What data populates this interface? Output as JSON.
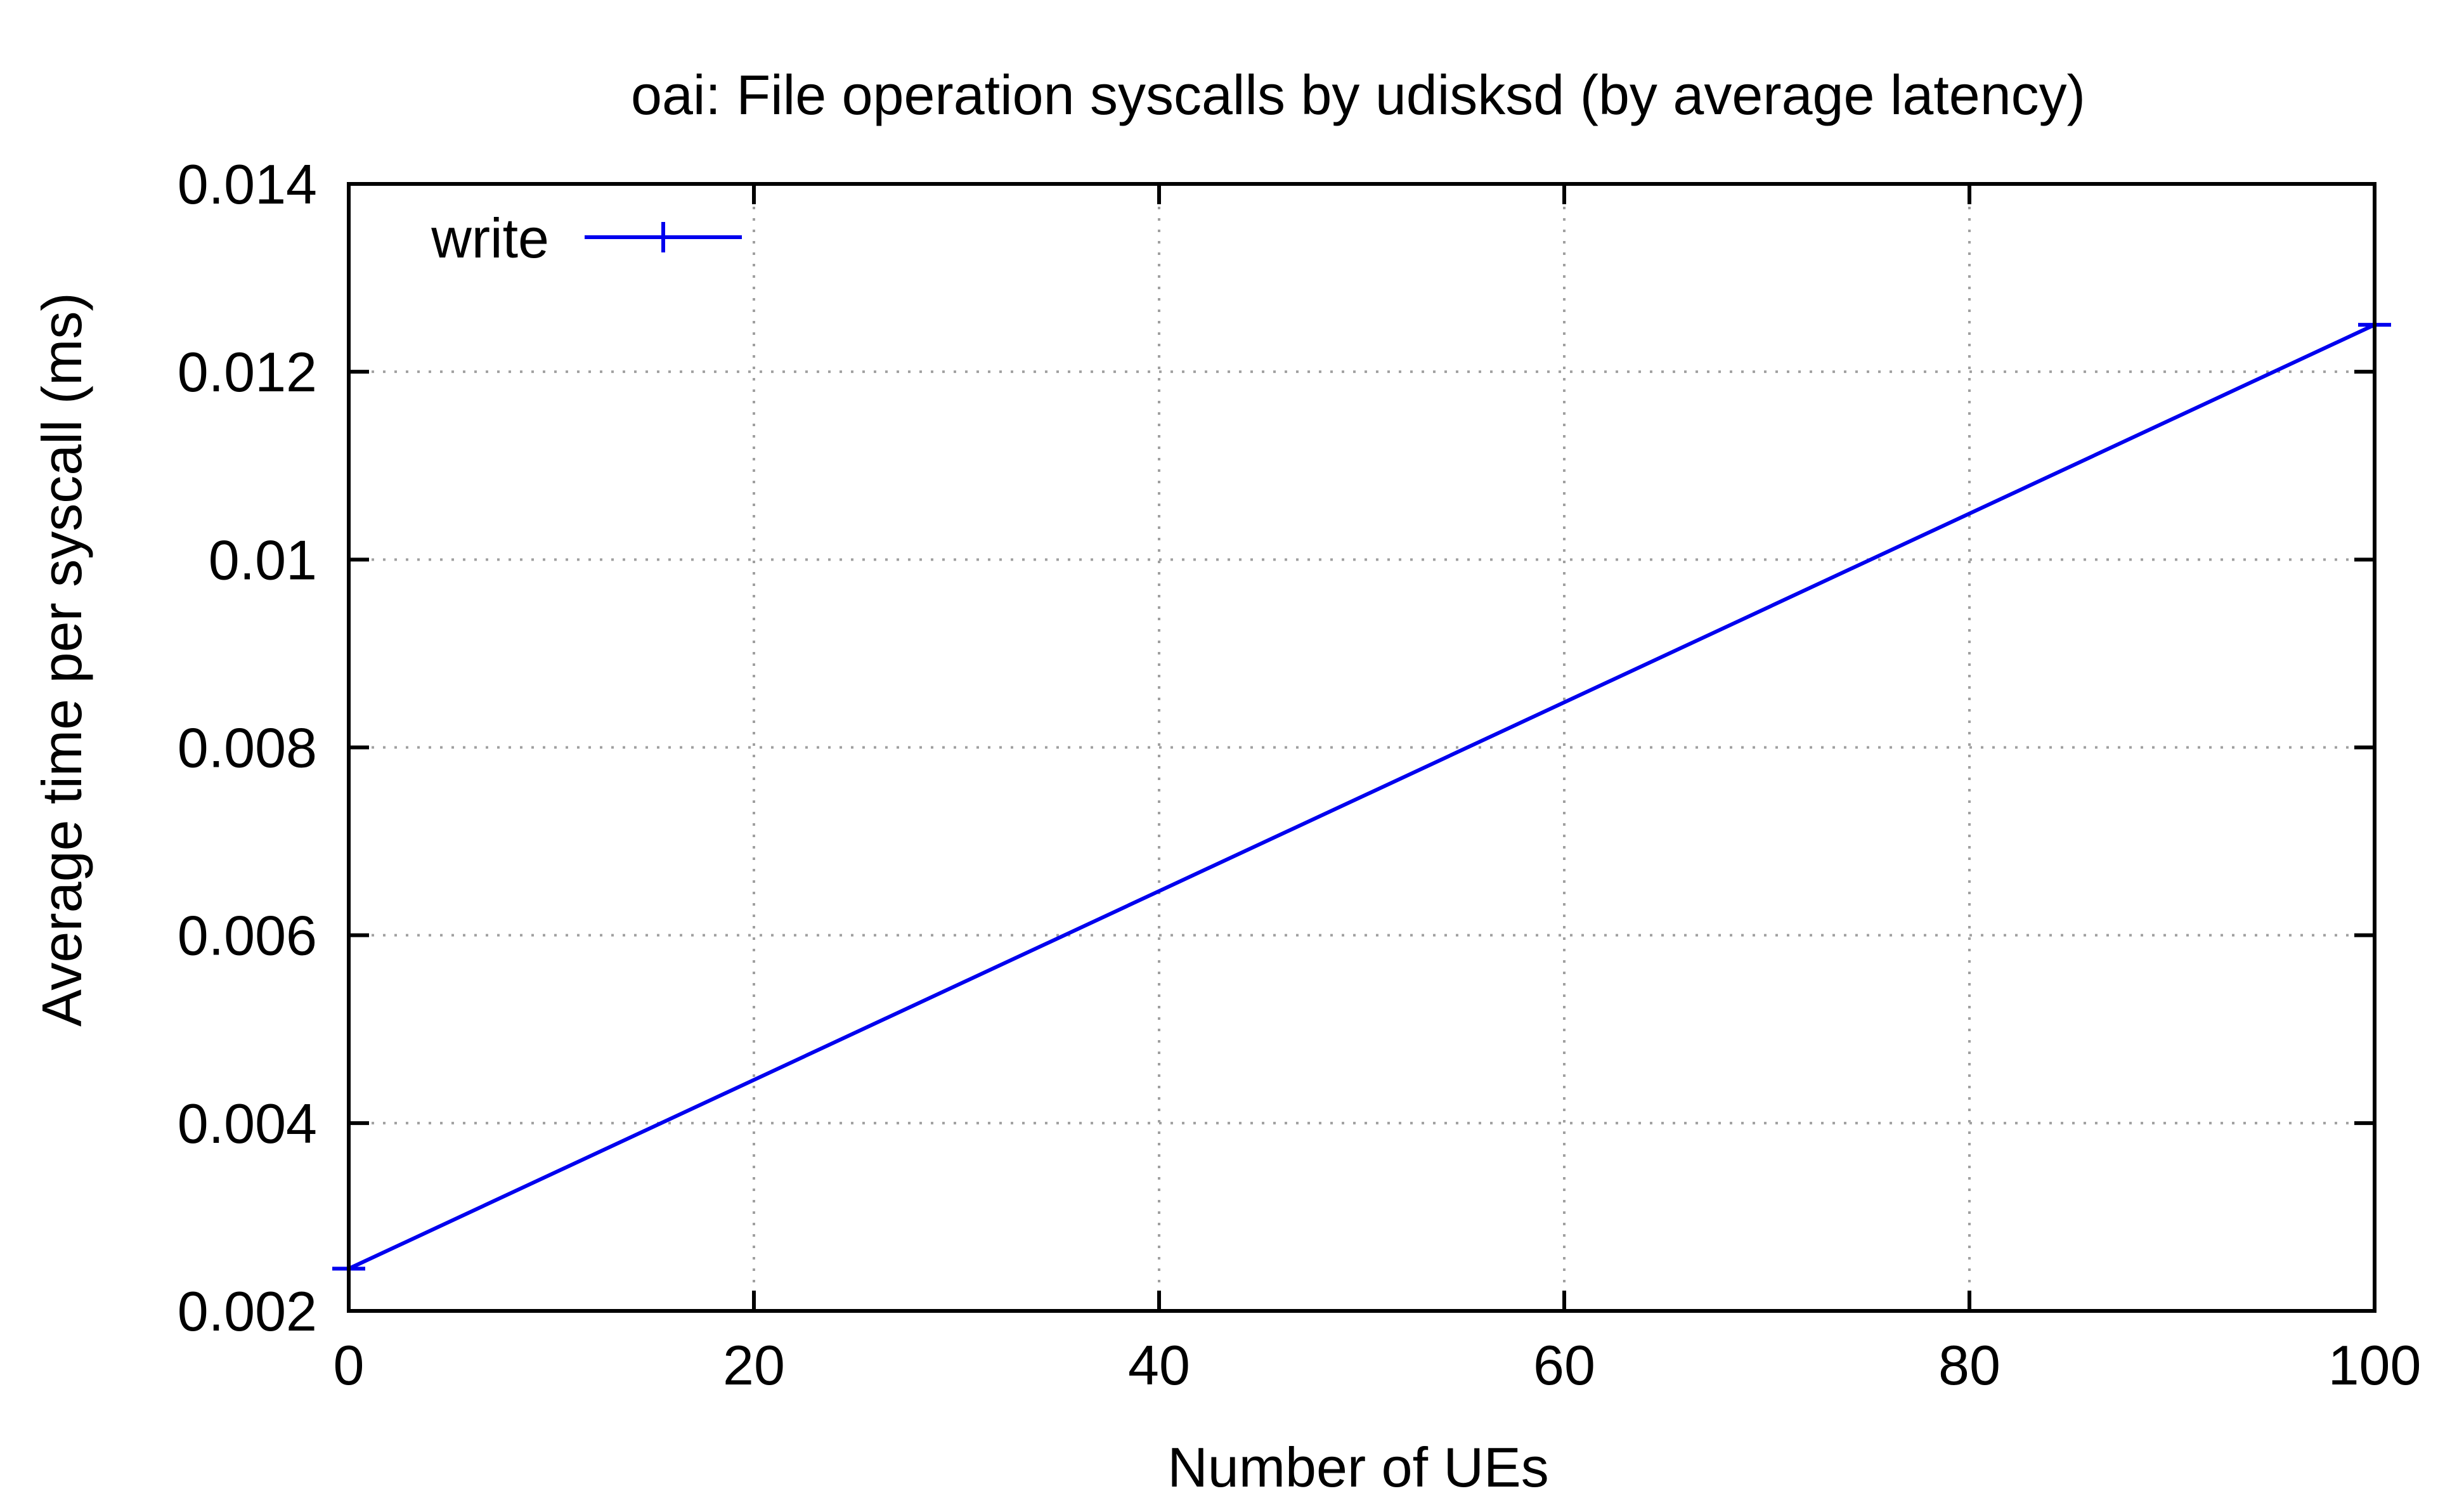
{
  "chart_data": {
    "type": "line",
    "title": "oai: File operation syscalls by udisksd (by average latency)",
    "xlabel": "Number of UEs",
    "ylabel": "Average time per syscall (ms)",
    "xlim": [
      0,
      100
    ],
    "ylim": [
      0.002,
      0.014
    ],
    "xticks": [
      0,
      20,
      40,
      60,
      80,
      100
    ],
    "xtick_labels": [
      "0",
      "20",
      "40",
      "60",
      "80",
      "100"
    ],
    "yticks": [
      0.002,
      0.004,
      0.006,
      0.008,
      0.01,
      0.012,
      0.014
    ],
    "ytick_labels": [
      "0.002",
      "0.004",
      "0.006",
      "0.008",
      "0.01",
      "0.012",
      "0.014"
    ],
    "grid": true,
    "legend_position": "top-left",
    "series": [
      {
        "name": "write",
        "color": "#0000ee",
        "marker": "plus",
        "x": [
          0,
          100
        ],
        "y": [
          0.00245,
          0.0125
        ]
      }
    ]
  }
}
